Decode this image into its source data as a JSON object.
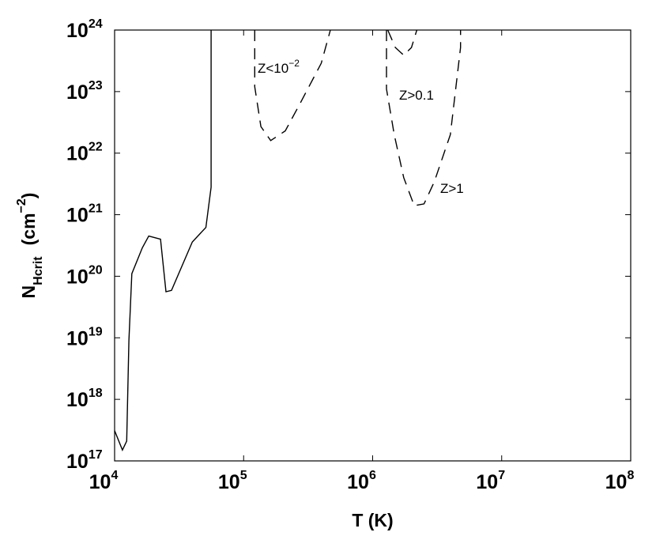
{
  "chart_data": {
    "type": "line",
    "xlabel": "T (K)",
    "ylabel": {
      "main": "N",
      "sub": "Hcrit",
      "unit": "(cm",
      "exp": "−2",
      "close": ")"
    },
    "xlog": true,
    "ylog": true,
    "xlim": [
      10000,
      100000000
    ],
    "ylim": [
      1e+17,
      1e+24
    ],
    "xticks": [
      {
        "value": 10000,
        "label": "10",
        "exponent": "4"
      },
      {
        "value": 100000,
        "label": "10",
        "exponent": "5"
      },
      {
        "value": 1000000,
        "label": "10",
        "exponent": "6"
      },
      {
        "value": 10000000,
        "label": "10",
        "exponent": "7"
      },
      {
        "value": 100000000,
        "label": "10",
        "exponent": "8"
      }
    ],
    "yticks": [
      {
        "value": 1e+17,
        "label": "10",
        "exponent": "17"
      },
      {
        "value": 1e+18,
        "label": "10",
        "exponent": "18"
      },
      {
        "value": 1e+19,
        "label": "10",
        "exponent": "19"
      },
      {
        "value": 1e+20,
        "label": "10",
        "exponent": "20"
      },
      {
        "value": 1e+21,
        "label": "10",
        "exponent": "21"
      },
      {
        "value": 1e+22,
        "label": "10",
        "exponent": "22"
      },
      {
        "value": 1e+23,
        "label": "10",
        "exponent": "23"
      },
      {
        "value": 1e+24,
        "label": "10",
        "exponent": "24"
      }
    ],
    "series": [
      {
        "color": "#000000",
        "dash": false,
        "x": [
          10000,
          11500,
          12400,
          12900,
          13600,
          16400,
          18400,
          22700,
          25000,
          27600,
          40000,
          51000,
          56000,
          56000
        ],
        "values": [
          3.1e+17,
          1.5e+17,
          2.1e+17,
          9e+18,
          1.1e+20,
          2.9e+20,
          4.5e+20,
          4e+20,
          5.6e+19,
          5.9e+19,
          3.6e+20,
          6.2e+20,
          2.8e+21,
          1e+24
        ]
      },
      {
        "color": "#000000",
        "dash": true,
        "x": [
          122000,
          122000,
          136000,
          162000,
          210000,
          276000,
          400000,
          470000
        ],
        "values": [
          1e+24,
          1.2e+23,
          2.7e+22,
          1.6e+22,
          2.3e+22,
          6.6e+22,
          2.9e+23,
          1e+24
        ]
      },
      {
        "color": "#000000",
        "dash": true,
        "x": [
          1310000,
          1500000,
          1740000,
          2000000,
          2200000
        ],
        "values": [
          1e+24,
          5.2e+23,
          3.9e+23,
          5.2e+23,
          1e+24
        ]
      },
      {
        "color": "#000000",
        "dash": true,
        "x": [
          1280000,
          1280000,
          1470000,
          1740000,
          2100000,
          2500000,
          3000000,
          4000000,
          4800000,
          4800000
        ],
        "values": [
          1e+24,
          1.1e+23,
          2e+22,
          4e+21,
          1.4e+21,
          1.5e+21,
          3.4e+21,
          2e+22,
          5.2e+23,
          1e+24
        ]
      }
    ],
    "annotations": [
      {
        "text": "Z<10",
        "exp": "−2"
      },
      {
        "text": "Z>0.1"
      },
      {
        "text": "Z>1"
      }
    ]
  }
}
